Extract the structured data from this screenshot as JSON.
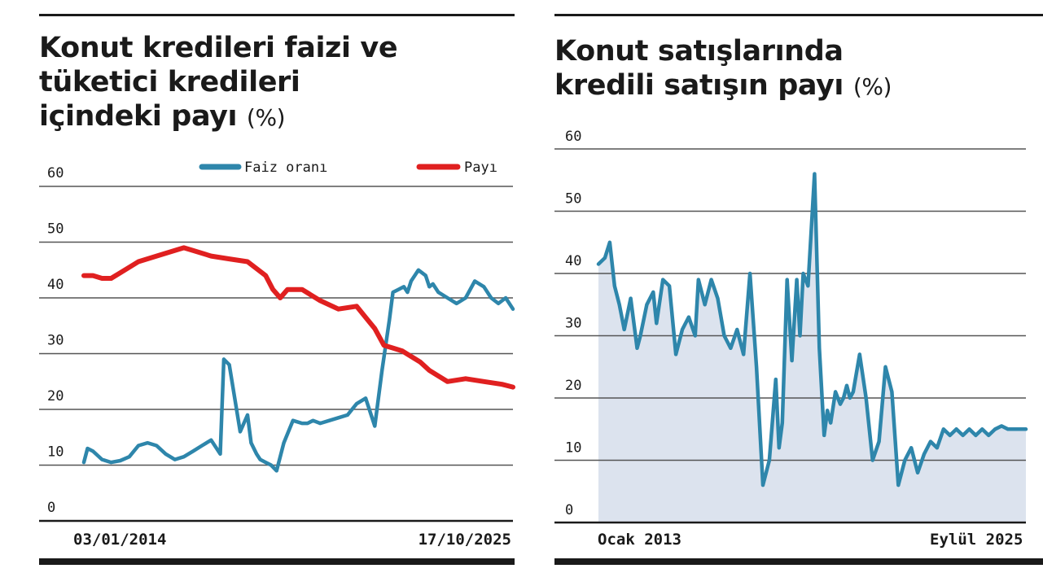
{
  "charts": [
    {
      "id": "left",
      "title_lines": [
        "Konut kredileri faizi ve",
        "tüketici kredileri",
        "içindeki payı"
      ],
      "unit": "(%)",
      "x_start_label": "03/01/2014",
      "x_end_label": "17/10/2025",
      "legend": [
        "Faiz oranı",
        "Payı"
      ],
      "colors": {
        "rate": "#2e86ab",
        "share": "#e02020",
        "grid": "#555555",
        "rule": "#1a1a1a"
      }
    },
    {
      "id": "right",
      "title_lines": [
        "Konut satışlarında",
        "kredili satışın payı"
      ],
      "unit": "(%)",
      "x_start_label": "Ocak 2013",
      "x_end_label": "Eylül 2025",
      "colors": {
        "line": "#2e86ab",
        "area": "#dce3ee",
        "grid": "#555555",
        "rule": "#1a1a1a"
      }
    }
  ],
  "chart_data": [
    {
      "type": "line",
      "title": "Konut kredileri faizi ve tüketici kredileri içindeki payı (%)",
      "xlabel": "",
      "ylabel": "",
      "x_range": [
        "03/01/2014",
        "17/10/2025"
      ],
      "x_ticks": [
        "03/01/2014",
        "17/10/2025"
      ],
      "y_ticks": [
        0,
        10,
        20,
        30,
        40,
        50,
        60
      ],
      "ylim": [
        0,
        60
      ],
      "grid": true,
      "legend_position": "top-right",
      "series": [
        {
          "name": "Faiz oranı",
          "x": [
            2014.0,
            2014.1,
            2014.25,
            2014.5,
            2014.75,
            2015.0,
            2015.25,
            2015.5,
            2015.75,
            2016.0,
            2016.25,
            2016.5,
            2016.75,
            2017.0,
            2017.25,
            2017.5,
            2017.75,
            2017.85,
            2018.0,
            2018.15,
            2018.3,
            2018.5,
            2018.6,
            2018.75,
            2018.85,
            2019.0,
            2019.15,
            2019.3,
            2019.5,
            2019.75,
            2020.0,
            2020.15,
            2020.3,
            2020.5,
            2020.75,
            2021.0,
            2021.25,
            2021.5,
            2021.75,
            2022.0,
            2022.2,
            2022.4,
            2022.5,
            2022.65,
            2022.8,
            2022.9,
            2023.0,
            2023.2,
            2023.4,
            2023.5,
            2023.6,
            2023.75,
            2024.0,
            2024.25,
            2024.5,
            2024.75,
            2025.0,
            2025.2,
            2025.4,
            2025.6,
            2025.8
          ],
          "values": [
            10.5,
            13.0,
            12.5,
            11.0,
            10.5,
            10.8,
            11.5,
            13.5,
            14.0,
            13.5,
            12.0,
            11.0,
            11.5,
            12.5,
            13.5,
            14.5,
            12.0,
            29.0,
            28.0,
            22.0,
            16.0,
            19.0,
            14.0,
            12.0,
            11.0,
            10.5,
            10.0,
            9.0,
            14.0,
            18.0,
            17.5,
            17.5,
            18.0,
            17.5,
            18.0,
            18.5,
            19.0,
            21.0,
            22.0,
            17.0,
            27.0,
            36.0,
            41.0,
            41.5,
            42.0,
            41.0,
            43.0,
            45.0,
            44.0,
            42.0,
            42.5,
            41.0,
            40.0,
            39.0,
            40.0,
            43.0,
            42.0,
            40.0,
            39.0,
            40.0,
            38.0
          ]
        },
        {
          "name": "Payı",
          "x": [
            2014.0,
            2014.25,
            2014.5,
            2014.75,
            2015.0,
            2015.5,
            2016.0,
            2016.5,
            2016.75,
            2017.0,
            2017.5,
            2018.0,
            2018.5,
            2019.0,
            2019.2,
            2019.4,
            2019.6,
            2020.0,
            2020.5,
            2021.0,
            2021.5,
            2021.75,
            2022.0,
            2022.25,
            2022.5,
            2022.75,
            2023.0,
            2023.25,
            2023.5,
            2023.75,
            2024.0,
            2024.5,
            2025.0,
            2025.5,
            2025.8
          ],
          "values": [
            44.0,
            44.0,
            43.5,
            43.5,
            44.5,
            46.5,
            47.5,
            48.5,
            49.0,
            48.5,
            47.5,
            47.0,
            46.5,
            44.0,
            41.5,
            40.0,
            41.5,
            41.5,
            39.5,
            38.0,
            38.5,
            36.5,
            34.5,
            31.5,
            31.0,
            30.5,
            29.5,
            28.5,
            27.0,
            26.0,
            25.0,
            25.5,
            25.0,
            24.5,
            24.0
          ]
        }
      ]
    },
    {
      "type": "area",
      "title": "Konut satışlarında kredili satışın payı (%)",
      "xlabel": "",
      "ylabel": "",
      "x_range": [
        "Ocak 2013",
        "Eylül 2025"
      ],
      "x_ticks": [
        "Ocak 2013",
        "Eylül 2025"
      ],
      "y_ticks": [
        0,
        10,
        20,
        30,
        40,
        50,
        60
      ],
      "ylim": [
        0,
        60
      ],
      "grid": true,
      "series": [
        {
          "name": "",
          "x": [
            2013.0,
            2013.2,
            2013.35,
            2013.5,
            2013.65,
            2013.8,
            2014.0,
            2014.2,
            2014.3,
            2014.5,
            2014.7,
            2014.8,
            2015.0,
            2015.2,
            2015.4,
            2015.6,
            2015.8,
            2016.0,
            2016.1,
            2016.3,
            2016.5,
            2016.7,
            2016.9,
            2017.1,
            2017.3,
            2017.5,
            2017.7,
            2017.9,
            2018.1,
            2018.3,
            2018.5,
            2018.6,
            2018.7,
            2018.85,
            2019.0,
            2019.15,
            2019.25,
            2019.35,
            2019.5,
            2019.7,
            2019.85,
            2020.0,
            2020.1,
            2020.2,
            2020.35,
            2020.5,
            2020.6,
            2020.7,
            2020.8,
            2020.9,
            2021.1,
            2021.3,
            2021.5,
            2021.7,
            2021.9,
            2022.1,
            2022.3,
            2022.5,
            2022.7,
            2022.9,
            2023.1,
            2023.3,
            2023.5,
            2023.7,
            2023.9,
            2024.1,
            2024.3,
            2024.5,
            2024.7,
            2024.9,
            2025.1,
            2025.3,
            2025.5,
            2025.7
          ],
          "values": [
            41.5,
            42.5,
            45.0,
            38.0,
            35.0,
            31.0,
            36.0,
            28.0,
            30.0,
            35.0,
            37.0,
            32.0,
            39.0,
            38.0,
            27.0,
            31.0,
            33.0,
            30.0,
            39.0,
            35.0,
            39.0,
            36.0,
            30.0,
            28.0,
            31.0,
            27.0,
            40.0,
            25.0,
            6.0,
            10.0,
            23.0,
            12.0,
            16.0,
            39.0,
            26.0,
            39.0,
            30.0,
            40.0,
            38.0,
            56.0,
            28.0,
            14.0,
            18.0,
            16.0,
            21.0,
            19.0,
            20.0,
            22.0,
            20.0,
            21.0,
            27.0,
            20.0,
            10.0,
            13.0,
            25.0,
            21.0,
            6.0,
            10.0,
            12.0,
            8.0,
            11.0,
            13.0,
            12.0,
            15.0,
            14.0,
            15.0,
            14.0,
            15.0,
            14.0,
            15.0,
            14.0,
            15.0,
            15.5,
            15.0
          ]
        }
      ]
    }
  ]
}
